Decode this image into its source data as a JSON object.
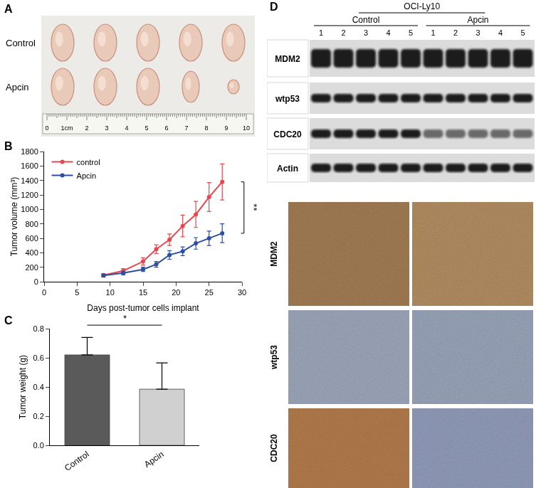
{
  "panel_labels": [
    "A",
    "B",
    "C",
    "D"
  ],
  "panel_a": {
    "rows": [
      "Control",
      "Apcin"
    ],
    "ruler": [
      "0",
      "1cm",
      "2",
      "3",
      "4",
      "5",
      "6",
      "7",
      "8",
      "9",
      "10"
    ]
  },
  "chart_data": [
    {
      "type": "line",
      "x": [
        9,
        12,
        15,
        17,
        19,
        21,
        23,
        25,
        27
      ],
      "series": [
        {
          "name": "control",
          "color": "#e8474d",
          "marker": "circle",
          "values": [
            90,
            150,
            280,
            450,
            580,
            770,
            930,
            1170,
            1380
          ],
          "errors": [
            20,
            30,
            50,
            60,
            80,
            150,
            180,
            200,
            250
          ]
        },
        {
          "name": "Apcin",
          "color": "#2d4fa2",
          "marker": "circle",
          "values": [
            85,
            120,
            170,
            240,
            370,
            420,
            530,
            600,
            670
          ],
          "errors": [
            20,
            25,
            30,
            40,
            60,
            60,
            80,
            100,
            130
          ]
        }
      ],
      "x_label": "Days post-tumor cells implant",
      "y_label": "Tumor volume (mm³)",
      "xlim": [
        0,
        30
      ],
      "xticks": [
        0,
        5,
        10,
        15,
        20,
        25,
        30
      ],
      "ylim": [
        0,
        1800
      ],
      "yticks": [
        0,
        200,
        400,
        600,
        800,
        1000,
        1200,
        1400,
        1600,
        1800
      ],
      "grid": false,
      "legend": "top-left",
      "annotations": [
        {
          "text": "**"
        }
      ]
    },
    {
      "type": "bar",
      "categories": [
        "Control",
        "Apcin"
      ],
      "values": [
        0.62,
        0.385
      ],
      "errors": [
        0.12,
        0.18
      ],
      "colors": [
        "#5a5a5a",
        "#d0d0d0"
      ],
      "y_label": "Tumor weight (g)",
      "ylim": [
        0,
        0.8
      ],
      "yticks": [
        {
          "value": 0,
          "label": "0.0"
        },
        0.2,
        0.4,
        0.6,
        0.8
      ],
      "grid": false,
      "annotations": [
        {
          "text": "*"
        }
      ]
    }
  ],
  "panel_d": {
    "cell_line": "OCI-Ly10",
    "groups": [
      "Control",
      "Apcin"
    ],
    "lanes": [
      "1",
      "2",
      "3",
      "4",
      "5"
    ],
    "blots": [
      "MDM2",
      "wtp53",
      "CDC20",
      "Actin"
    ],
    "ihc": [
      "MDM2",
      "wtp53",
      "CDC20"
    ]
  }
}
